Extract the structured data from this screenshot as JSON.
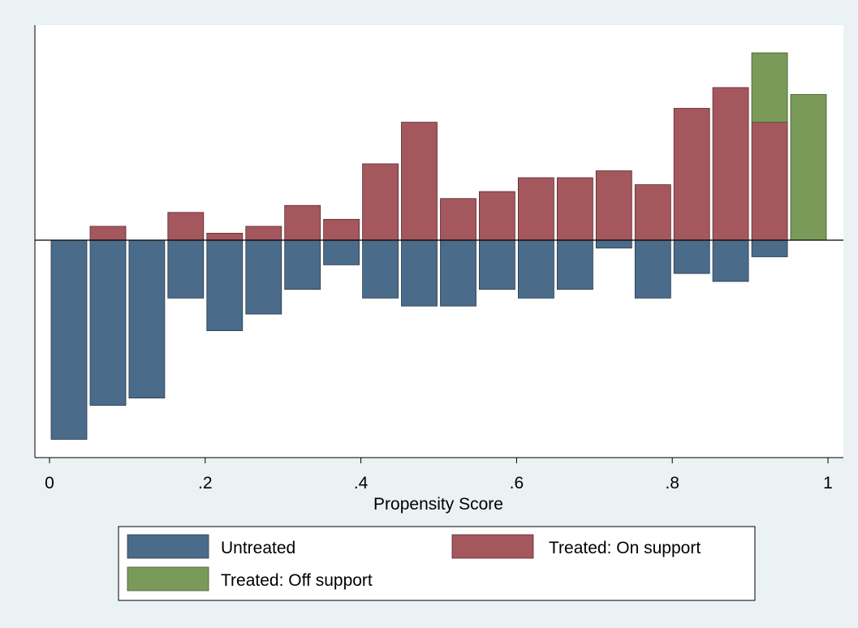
{
  "chart_data": {
    "type": "bar",
    "title": "",
    "xlabel": "Propensity Score",
    "ylabel": "",
    "xlim": [
      0,
      1
    ],
    "x_ticks": [
      {
        "value": 0,
        "label": "0"
      },
      {
        "value": 0.2,
        "label": ".2"
      },
      {
        "value": 0.4,
        "label": ".4"
      },
      {
        "value": 0.6,
        "label": ".6"
      },
      {
        "value": 0.8,
        "label": ".8"
      },
      {
        "value": 1,
        "label": "1"
      }
    ],
    "bin_width": 0.05,
    "bins": [
      0.025,
      0.075,
      0.125,
      0.175,
      0.225,
      0.275,
      0.325,
      0.375,
      0.425,
      0.475,
      0.525,
      0.575,
      0.625,
      0.675,
      0.725,
      0.775,
      0.825,
      0.875,
      0.925,
      0.975
    ],
    "ylim": [
      -0.28,
      0.29
    ],
    "layout": "mirrored: untreated below zero, treated above zero, stacked",
    "series": [
      {
        "name": "Untreated",
        "color": "#4a6b8a",
        "direction": "down",
        "values": [
          0.275,
          0.228,
          0.218,
          0.08,
          0.125,
          0.102,
          0.068,
          0.034,
          0.08,
          0.091,
          0.091,
          0.068,
          0.08,
          0.068,
          0.011,
          0.08,
          0.046,
          0.057,
          0.023,
          0
        ]
      },
      {
        "name": "Treated: On support",
        "color": "#a4575d",
        "direction": "up",
        "values": [
          0,
          0.02,
          0,
          0.04,
          0.01,
          0.02,
          0.05,
          0.03,
          0.11,
          0.17,
          0.06,
          0.07,
          0.09,
          0.09,
          0.1,
          0.08,
          0.19,
          0.22,
          0.17,
          0
        ]
      },
      {
        "name": "Treated: Off support",
        "color": "#7a9a5a",
        "direction": "up",
        "values": [
          0,
          0,
          0,
          0,
          0,
          0,
          0,
          0,
          0,
          0,
          0,
          0,
          0,
          0,
          0,
          0,
          0,
          0,
          0.1,
          0.21
        ]
      }
    ],
    "legend": {
      "position": "bottom",
      "columns": 2,
      "items": [
        "Untreated",
        "Treated: On support",
        "Treated: Off support"
      ]
    },
    "grid": false
  }
}
